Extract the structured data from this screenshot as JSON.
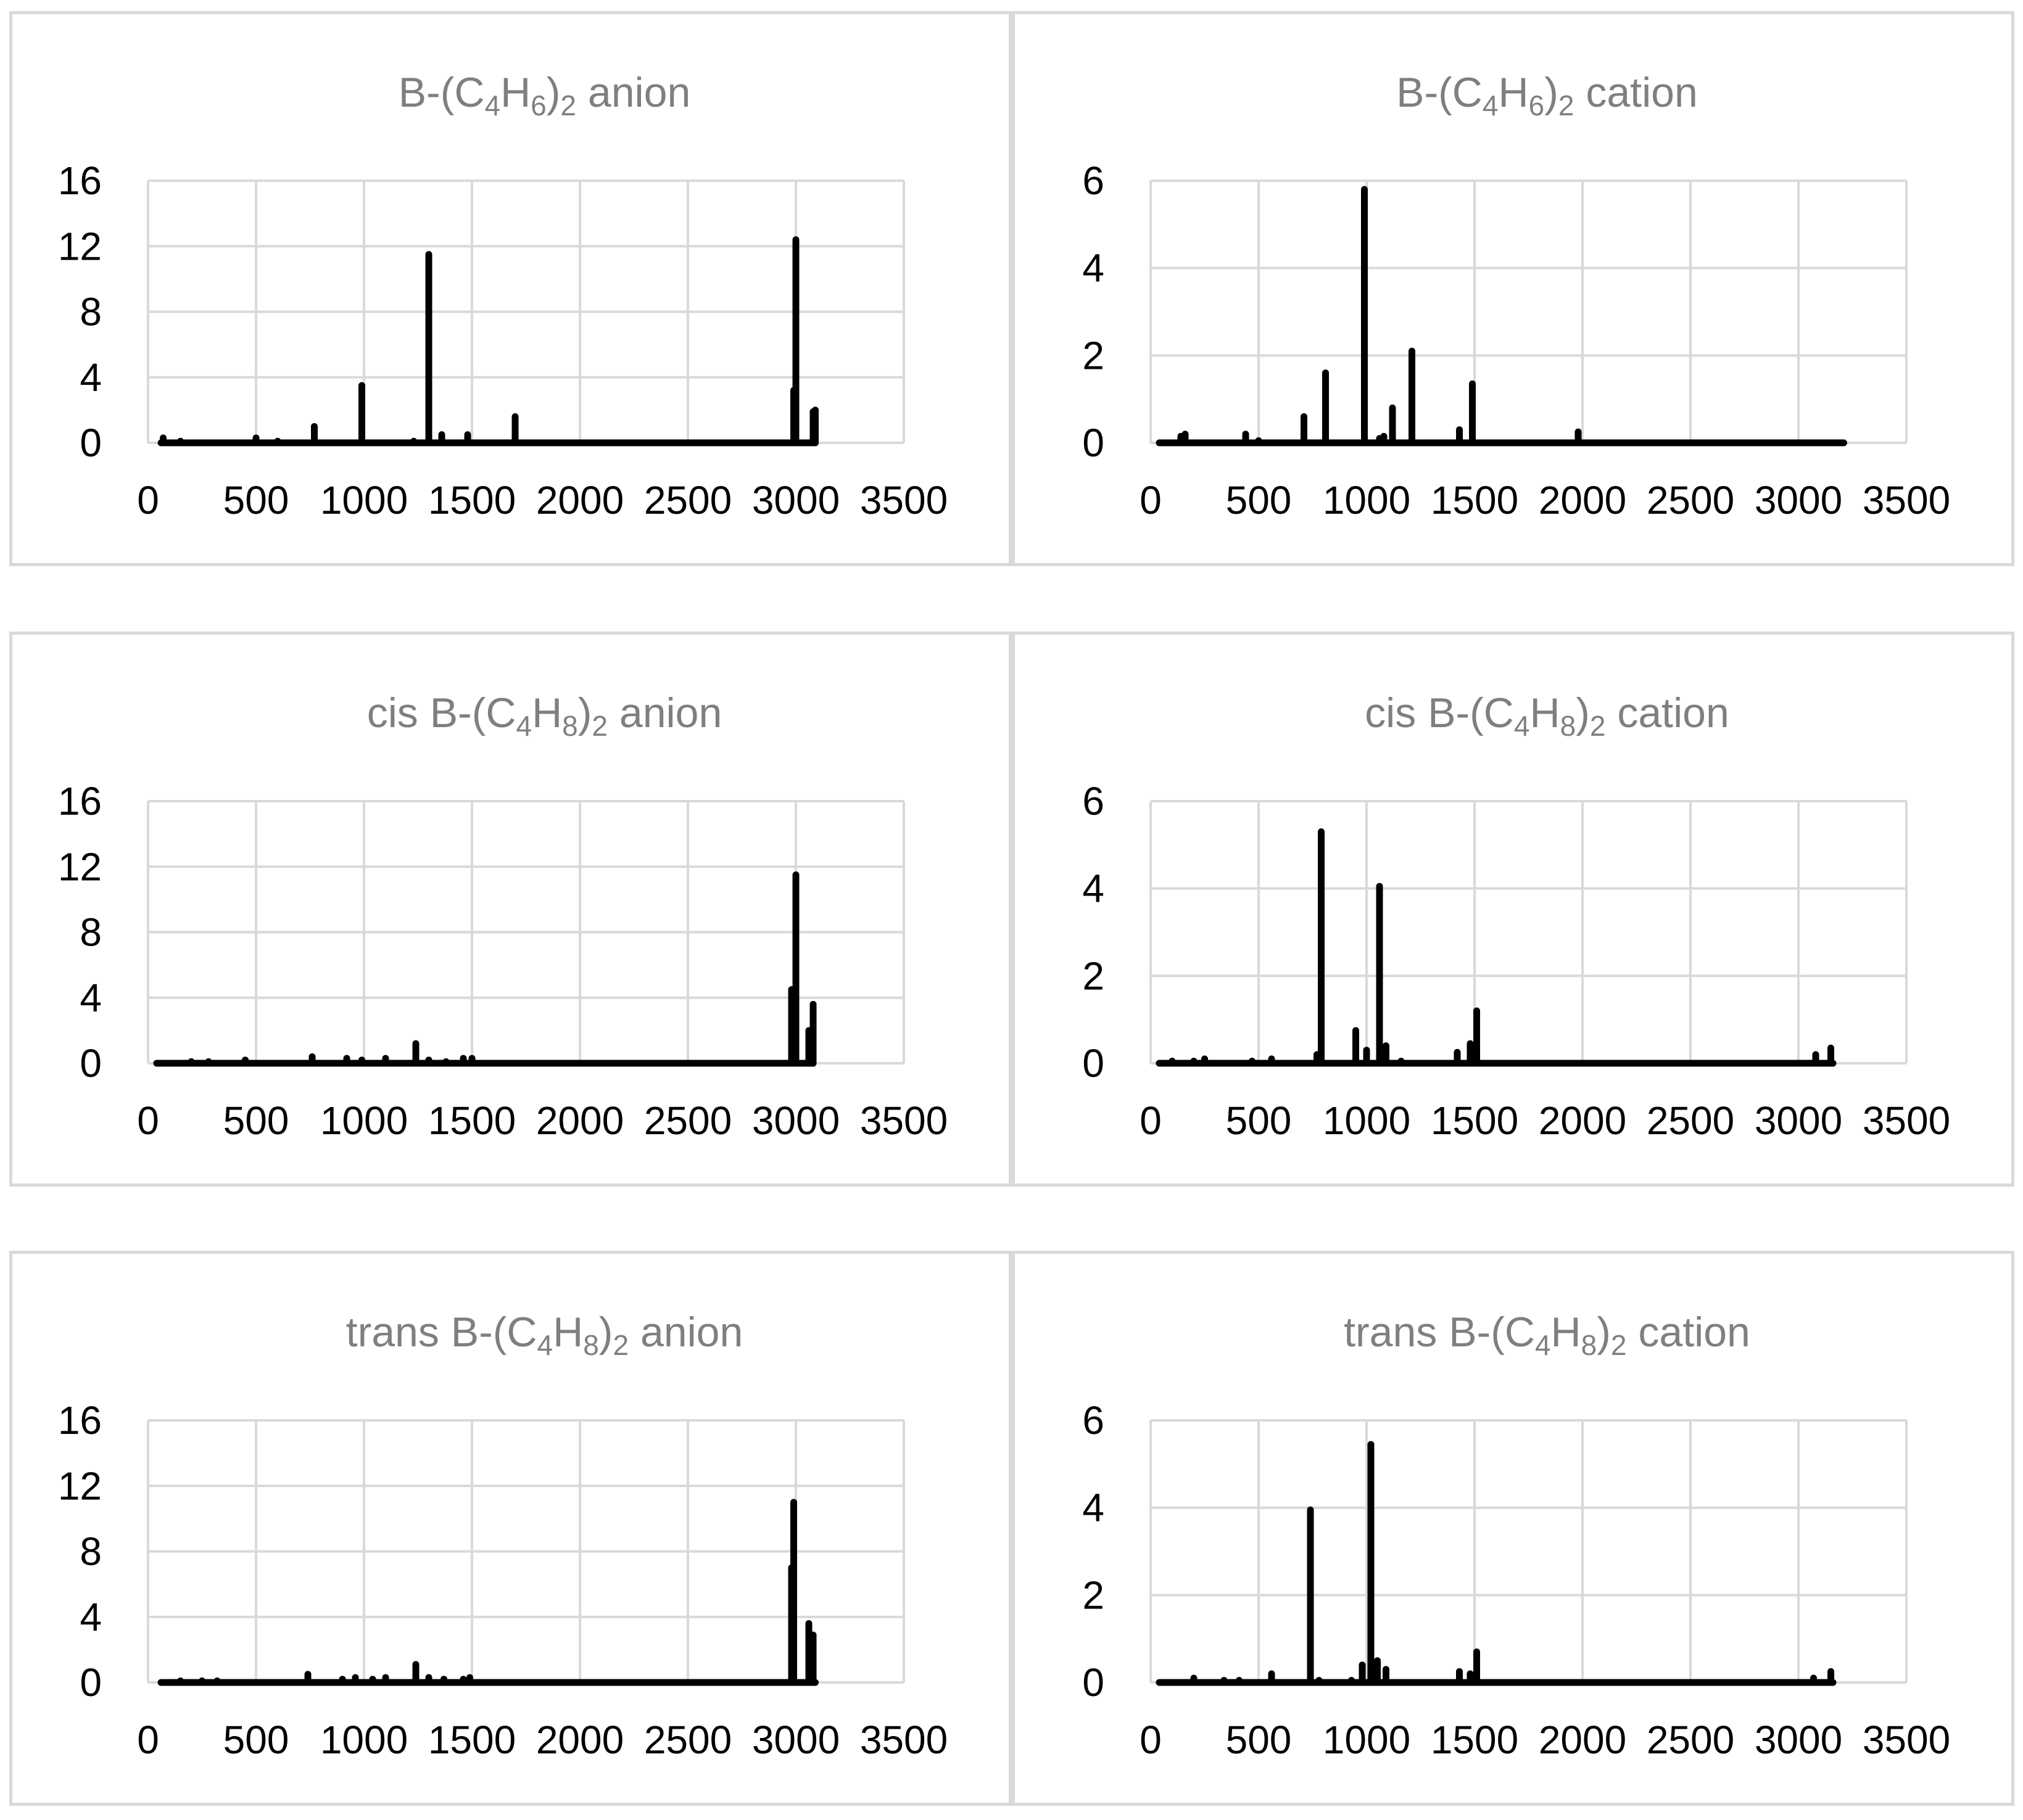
{
  "chart_data": [
    {
      "type": "bar",
      "title": "B-(C4H6)2 anion",
      "title_parts": [
        {
          "t": "B-(C"
        },
        {
          "t": "4",
          "sub": true
        },
        {
          "t": "H"
        },
        {
          "t": "6",
          "sub": true
        },
        {
          "t": ")"
        },
        {
          "t": "2",
          "sub": true
        },
        {
          "t": " anion"
        }
      ],
      "xlim": [
        0,
        3500
      ],
      "ylim": [
        0,
        16
      ],
      "xticks": [
        0,
        500,
        1000,
        1500,
        2000,
        2500,
        3000,
        3500
      ],
      "yticks": [
        0,
        4,
        8,
        12,
        16
      ],
      "baseline_x": [
        60,
        3090
      ],
      "x": [
        70,
        150,
        500,
        600,
        770,
        990,
        1230,
        1300,
        1360,
        1480,
        1700,
        2990,
        3000,
        3080,
        3090
      ],
      "values": [
        0.3,
        0.1,
        0.3,
        0.1,
        1.0,
        3.5,
        0.1,
        11.5,
        0.5,
        0.5,
        1.6,
        3.2,
        12.4,
        1.9,
        2.0
      ]
    },
    {
      "type": "bar",
      "title": "B-(C4H6)2 cation",
      "title_parts": [
        {
          "t": "B-(C"
        },
        {
          "t": "4",
          "sub": true
        },
        {
          "t": "H"
        },
        {
          "t": "6",
          "sub": true
        },
        {
          "t": ")"
        },
        {
          "t": "2",
          "sub": true
        },
        {
          "t": " cation"
        }
      ],
      "xlim": [
        0,
        3500
      ],
      "ylim": [
        0,
        6
      ],
      "xticks": [
        0,
        500,
        1000,
        1500,
        2000,
        2500,
        3000,
        3500
      ],
      "yticks": [
        0,
        2,
        4,
        6
      ],
      "baseline_x": [
        40,
        3210
      ],
      "x": [
        140,
        160,
        440,
        500,
        710,
        810,
        990,
        1060,
        1080,
        1120,
        1210,
        1430,
        1490,
        1980
      ],
      "values": [
        0.15,
        0.2,
        0.2,
        0.05,
        0.6,
        1.6,
        5.8,
        0.1,
        0.15,
        0.8,
        2.1,
        0.3,
        1.35,
        0.25
      ]
    },
    {
      "type": "bar",
      "title": "cis B-(C4H8)2 anion",
      "title_parts": [
        {
          "t": "cis B-(C"
        },
        {
          "t": "4",
          "sub": true
        },
        {
          "t": "H"
        },
        {
          "t": "8",
          "sub": true
        },
        {
          "t": ")"
        },
        {
          "t": "2",
          "sub": true
        },
        {
          "t": " anion"
        }
      ],
      "xlim": [
        0,
        3500
      ],
      "ylim": [
        0,
        16
      ],
      "xticks": [
        0,
        500,
        1000,
        1500,
        2000,
        2500,
        3000,
        3500
      ],
      "yticks": [
        0,
        4,
        8,
        12,
        16
      ],
      "baseline_x": [
        40,
        3080
      ],
      "x": [
        200,
        280,
        450,
        760,
        920,
        990,
        1100,
        1240,
        1300,
        1380,
        1460,
        1500,
        2980,
        3000,
        3060,
        3080
      ],
      "values": [
        0.1,
        0.1,
        0.2,
        0.4,
        0.3,
        0.2,
        0.3,
        1.2,
        0.2,
        0.1,
        0.3,
        0.3,
        4.5,
        11.5,
        2.0,
        3.6
      ]
    },
    {
      "type": "bar",
      "title": "cis B-(C4H8)2 cation",
      "title_parts": [
        {
          "t": "cis B-(C"
        },
        {
          "t": "4",
          "sub": true
        },
        {
          "t": "H"
        },
        {
          "t": "8",
          "sub": true
        },
        {
          "t": ")"
        },
        {
          "t": "2",
          "sub": true
        },
        {
          "t": " cation"
        }
      ],
      "xlim": [
        0,
        3500
      ],
      "ylim": [
        0,
        6
      ],
      "xticks": [
        0,
        500,
        1000,
        1500,
        2000,
        2500,
        3000,
        3500
      ],
      "yticks": [
        0,
        2,
        4,
        6
      ],
      "baseline_x": [
        40,
        3160
      ],
      "x": [
        100,
        200,
        250,
        470,
        560,
        770,
        790,
        950,
        1000,
        1060,
        1090,
        1160,
        1420,
        1480,
        1510,
        3080,
        3150
      ],
      "values": [
        0.05,
        0.05,
        0.1,
        0.05,
        0.1,
        0.2,
        5.3,
        0.75,
        0.3,
        4.05,
        0.4,
        0.05,
        0.25,
        0.45,
        1.2,
        0.2,
        0.35
      ]
    },
    {
      "type": "bar",
      "title": "trans B-(C4H8)2 anion",
      "title_parts": [
        {
          "t": "trans B-(C"
        },
        {
          "t": "4",
          "sub": true
        },
        {
          "t": "H"
        },
        {
          "t": "8",
          "sub": true
        },
        {
          "t": ")"
        },
        {
          "t": "2",
          "sub": true
        },
        {
          "t": " anion"
        }
      ],
      "xlim": [
        0,
        3500
      ],
      "ylim": [
        0,
        16
      ],
      "xticks": [
        0,
        500,
        1000,
        1500,
        2000,
        2500,
        3000,
        3500
      ],
      "yticks": [
        0,
        4,
        8,
        12,
        16
      ],
      "baseline_x": [
        60,
        3090
      ],
      "x": [
        150,
        250,
        320,
        740,
        900,
        960,
        1040,
        1100,
        1240,
        1300,
        1370,
        1460,
        1490,
        2980,
        2990,
        3060,
        3080
      ],
      "values": [
        0.1,
        0.1,
        0.1,
        0.5,
        0.2,
        0.3,
        0.2,
        0.3,
        1.1,
        0.3,
        0.2,
        0.2,
        0.3,
        7.0,
        11.0,
        3.6,
        2.9
      ]
    },
    {
      "type": "bar",
      "title": "trans B-(C4H8)2 cation",
      "title_parts": [
        {
          "t": "trans B-(C"
        },
        {
          "t": "4",
          "sub": true
        },
        {
          "t": "H"
        },
        {
          "t": "8",
          "sub": true
        },
        {
          "t": ")"
        },
        {
          "t": "2",
          "sub": true
        },
        {
          "t": " cation"
        }
      ],
      "xlim": [
        0,
        3500
      ],
      "ylim": [
        0,
        6
      ],
      "xticks": [
        0,
        500,
        1000,
        1500,
        2000,
        2500,
        3000,
        3500
      ],
      "yticks": [
        0,
        2,
        4,
        6
      ],
      "baseline_x": [
        40,
        3160
      ],
      "x": [
        200,
        340,
        410,
        560,
        740,
        780,
        930,
        980,
        1020,
        1050,
        1090,
        1430,
        1480,
        1510,
        3070,
        3150
      ],
      "values": [
        0.1,
        0.05,
        0.05,
        0.2,
        3.95,
        0.05,
        0.05,
        0.4,
        5.45,
        0.5,
        0.3,
        0.25,
        0.2,
        0.7,
        0.1,
        0.25
      ]
    }
  ]
}
